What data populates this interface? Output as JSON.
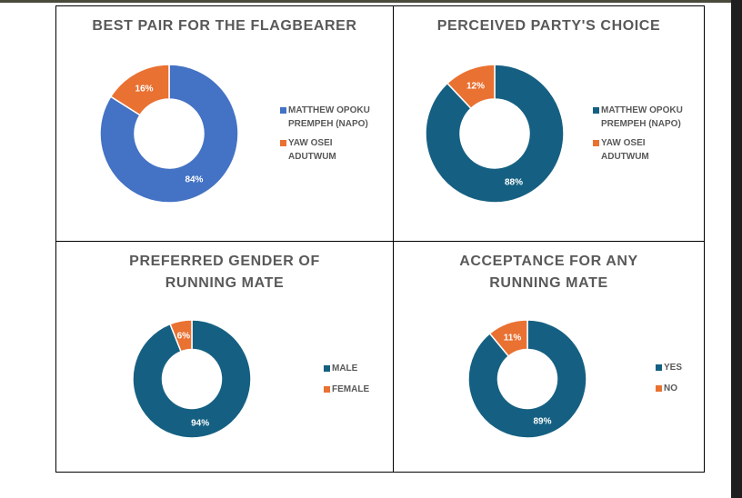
{
  "colors": {
    "blue_light": "#4472C4",
    "blue_dark": "#156082",
    "orange": "#E97132"
  },
  "chart_data": [
    {
      "type": "pie",
      "title": "BEST PAIR FOR THE FLAGBEARER",
      "labels": [
        "MATTHEW OPOKU PREMPEH (NAPO)",
        "YAW OSEI ADUTWUM"
      ],
      "values": [
        84,
        16
      ],
      "value_labels": [
        "84%",
        "16%"
      ],
      "colors": [
        "#4472C4",
        "#E97132"
      ],
      "legend_position": "right"
    },
    {
      "type": "pie",
      "title": "PERCEIVED PARTY'S CHOICE",
      "labels": [
        "MATTHEW OPOKU PREMPEH (NAPO)",
        "YAW OSEI ADUTWUM"
      ],
      "values": [
        88,
        12
      ],
      "value_labels": [
        "88%",
        "12%"
      ],
      "colors": [
        "#156082",
        "#E97132"
      ],
      "legend_position": "right"
    },
    {
      "type": "pie",
      "title": "PREFERRED GENDER OF RUNNING MATE",
      "title_lines": [
        "PREFERRED GENDER OF",
        "RUNNING MATE"
      ],
      "labels": [
        "MALE",
        "FEMALE"
      ],
      "values": [
        94,
        6
      ],
      "value_labels": [
        "94%",
        "6%"
      ],
      "colors": [
        "#156082",
        "#E97132"
      ],
      "legend_position": "right"
    },
    {
      "type": "pie",
      "title": "ACCEPTANCE FOR ANY RUNNING MATE",
      "title_lines": [
        "ACCEPTANCE FOR ANY",
        "RUNNING MATE"
      ],
      "labels": [
        "YES",
        "NO"
      ],
      "values": [
        89,
        11
      ],
      "value_labels": [
        "89%",
        "11%"
      ],
      "colors": [
        "#156082",
        "#E97132"
      ],
      "legend_position": "right"
    }
  ]
}
